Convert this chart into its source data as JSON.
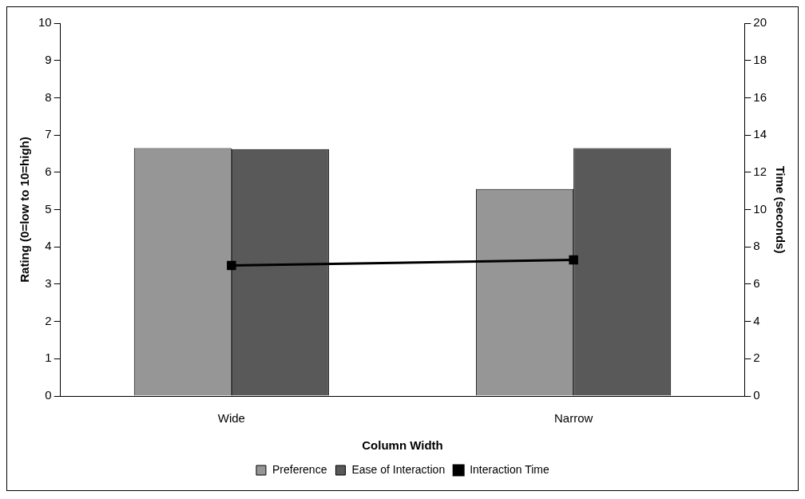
{
  "chart_data": {
    "type": "bar",
    "xlabel": "Column Width",
    "ylabel": "Rating (0=low to 10=high)",
    "y2label": "Time (seconds)",
    "categories": [
      "Wide",
      "Narrow"
    ],
    "series": [
      {
        "name": "Preference",
        "color": "#969696",
        "values": [
          6.65,
          5.55
        ]
      },
      {
        "name": "Ease of Interaction",
        "color": "#595959",
        "values": [
          6.62,
          6.65
        ]
      },
      {
        "name": "Interaction Time",
        "type": "line",
        "axis": "y2",
        "color": "#000000",
        "marker": "square",
        "values": [
          7.0,
          7.3
        ]
      }
    ],
    "ylim": [
      0,
      10
    ],
    "yticks": [
      0,
      1,
      2,
      3,
      4,
      5,
      6,
      7,
      8,
      9,
      10
    ],
    "y2lim": [
      0,
      20
    ],
    "y2ticks": [
      0,
      2,
      4,
      6,
      8,
      10,
      12,
      14,
      16,
      18,
      20
    ],
    "grid": false,
    "legend": "bottom"
  }
}
